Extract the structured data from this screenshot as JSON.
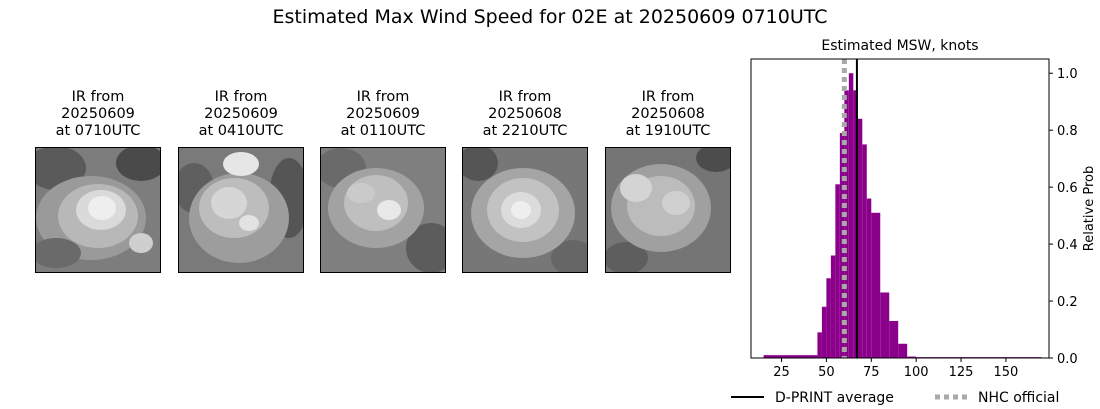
{
  "title": "Estimated Max Wind Speed for 02E at 20250609 0710UTC",
  "ir_panels": [
    {
      "line1": "IR from",
      "line2": "20250609",
      "line3": "at 0710UTC"
    },
    {
      "line1": "IR from",
      "line2": "20250609",
      "line3": "at 0410UTC"
    },
    {
      "line1": "IR from",
      "line2": "20250609",
      "line3": "at 0110UTC"
    },
    {
      "line1": "IR from",
      "line2": "20250608",
      "line3": "at 2210UTC"
    },
    {
      "line1": "IR from",
      "line2": "20250608",
      "line3": "at 1910UTC"
    }
  ],
  "chart_data": {
    "type": "bar",
    "title": "Estimated MSW, knots",
    "xlabel": "",
    "ylabel": "Relative Prob",
    "xlim": [
      8,
      174
    ],
    "ylim": [
      0,
      1.05
    ],
    "x_ticks": [
      25,
      50,
      75,
      100,
      125,
      150
    ],
    "y_ticks": [
      0.0,
      0.2,
      0.4,
      0.6,
      0.8,
      1.0
    ],
    "y_tick_labels": [
      "0.0",
      "0.2",
      "0.4",
      "0.6",
      "0.8",
      "1.0"
    ],
    "y_axis_side": "right",
    "bar_color": "#8b008b",
    "bin_width": 5,
    "bins": [
      {
        "left": 15,
        "value": 0.01
      },
      {
        "left": 20,
        "value": 0.01
      },
      {
        "left": 25,
        "value": 0.01
      },
      {
        "left": 30,
        "value": 0.01
      },
      {
        "left": 35,
        "value": 0.01
      },
      {
        "left": 40,
        "value": 0.01
      },
      {
        "left": 45,
        "value": 0.09
      },
      {
        "left": 47.5,
        "value": 0.18
      },
      {
        "left": 50,
        "value": 0.28
      },
      {
        "left": 52.5,
        "value": 0.36
      },
      {
        "left": 55,
        "value": 0.61
      },
      {
        "left": 57.5,
        "value": 0.79
      },
      {
        "left": 60,
        "value": 0.94
      },
      {
        "left": 62.5,
        "value": 1.0
      },
      {
        "left": 65,
        "value": 0.94
      },
      {
        "left": 67.5,
        "value": 0.84
      },
      {
        "left": 70,
        "value": 0.75
      },
      {
        "left": 72.5,
        "value": 0.56
      },
      {
        "left": 75,
        "value": 0.51
      },
      {
        "left": 80,
        "value": 0.23
      },
      {
        "left": 85,
        "value": 0.13
      },
      {
        "left": 90,
        "value": 0.05
      },
      {
        "left": 95,
        "value": 0.005
      },
      {
        "left": 100,
        "value": 0.003
      },
      {
        "left": 105,
        "value": 0.003
      },
      {
        "left": 110,
        "value": 0.003
      },
      {
        "left": 115,
        "value": 0.003
      },
      {
        "left": 120,
        "value": 0.003
      },
      {
        "left": 125,
        "value": 0.003
      },
      {
        "left": 130,
        "value": 0.003
      },
      {
        "left": 135,
        "value": 0.003
      },
      {
        "left": 140,
        "value": 0.003
      },
      {
        "left": 145,
        "value": 0.003
      },
      {
        "left": 150,
        "value": 0.003
      },
      {
        "left": 155,
        "value": 0.003
      },
      {
        "left": 160,
        "value": 0.003
      },
      {
        "left": 165,
        "value": 0.003
      }
    ],
    "dprint_average": 67,
    "nhc_official": 60,
    "legend": {
      "placement": "bottom",
      "dprint_label": "D-PRINT average",
      "dprint_color": "#000000",
      "nhc_label": "NHC official",
      "nhc_color": "#a9a9a9"
    }
  }
}
